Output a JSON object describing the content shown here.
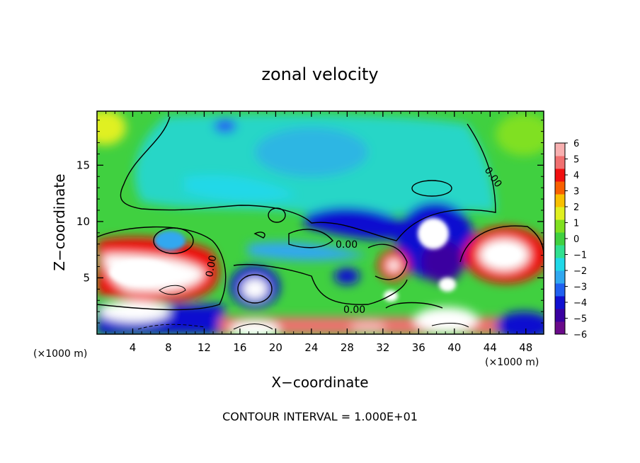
{
  "chart_data": {
    "type": "heatmap",
    "title": "zonal velocity",
    "xlabel": "X−coordinate",
    "ylabel": "Z−coordinate",
    "x_unit_left": "(×1000 m)",
    "x_unit_right": "(×1000 m)",
    "footer": "CONTOUR INTERVAL = 1.000E+01",
    "xlim": [
      0,
      50
    ],
    "ylim": [
      0,
      19.8
    ],
    "x_ticks": [
      4,
      8,
      12,
      16,
      20,
      24,
      28,
      32,
      36,
      40,
      44,
      48
    ],
    "y_ticks": [
      5,
      10,
      15
    ],
    "x_tick_labels": [
      "4",
      "8",
      "12",
      "16",
      "20",
      "24",
      "28",
      "32",
      "36",
      "40",
      "44",
      "48"
    ],
    "y_tick_labels": [
      "5",
      "10",
      "15"
    ],
    "colorbar": {
      "min": -6,
      "max": 6,
      "labels": [
        "6",
        "5",
        "4",
        "3",
        "2",
        "1",
        "0",
        "−1",
        "−2",
        "−3",
        "−4",
        "−5",
        "−6"
      ],
      "colors": [
        "#6a0a8a",
        "#3a00a0",
        "#1010d0",
        "#2060f0",
        "#30a8f0",
        "#20d8e8",
        "#30e090",
        "#40d040",
        "#80e020",
        "#e0f020",
        "#f8c000",
        "#f86000",
        "#f01010",
        "#f07070",
        "#f8b0b0"
      ]
    },
    "contour_labels": [
      "0.00",
      "0.00",
      "0.00",
      "0.00"
    ],
    "contour_interval": 10
  }
}
